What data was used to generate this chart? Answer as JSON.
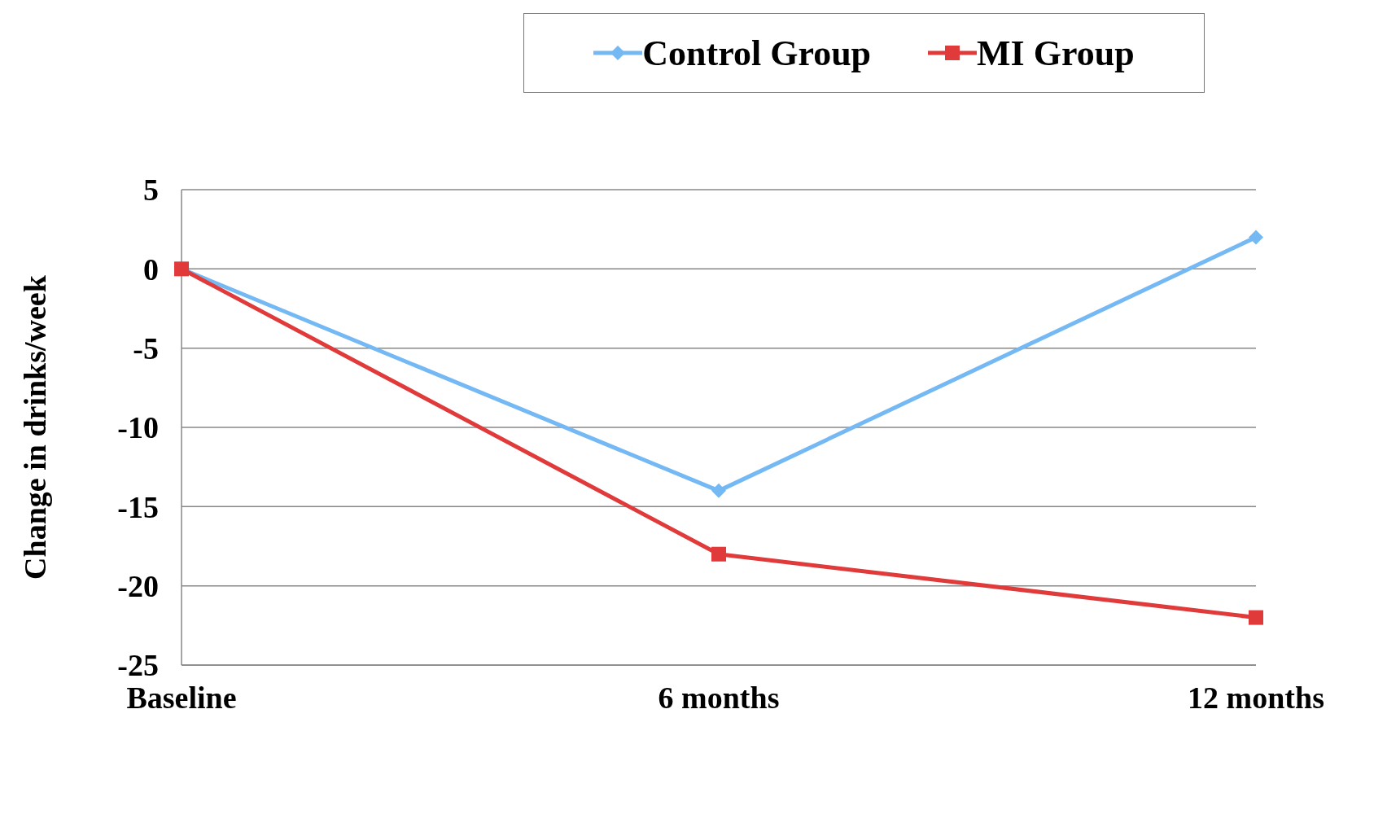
{
  "chart_data": {
    "type": "line",
    "ylabel": "Change in drinks/week",
    "categories": [
      "Baseline",
      "6 months",
      "12 months"
    ],
    "series": [
      {
        "name": "Control Group",
        "color": "#74b8f4",
        "values": [
          0,
          -14,
          2
        ],
        "marker": "diamond"
      },
      {
        "name": "MI Group",
        "color": "#e03a3a",
        "values": [
          0,
          -18,
          -22
        ],
        "marker": "square"
      }
    ],
    "ylim": [
      -25,
      5
    ],
    "yticks": [
      -25,
      -20,
      -15,
      -10,
      -5,
      0,
      5
    ],
    "grid": "y",
    "legend": "top"
  }
}
